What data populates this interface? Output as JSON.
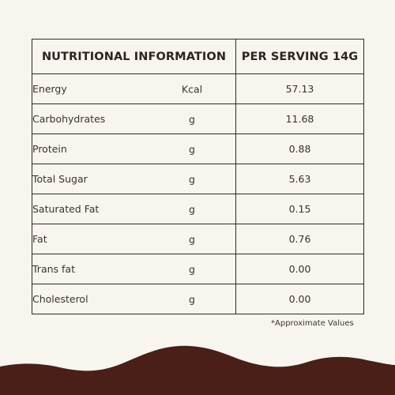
{
  "table": {
    "header": {
      "col1": "NUTRITIONAL INFORMATION",
      "col2": "PER SERVING 14G"
    },
    "rows": [
      {
        "name": "Energy",
        "unit": "Kcal",
        "value": "57.13"
      },
      {
        "name": "Carbohydrates",
        "unit": "g",
        "value": "11.68"
      },
      {
        "name": "Protein",
        "unit": "g",
        "value": "0.88"
      },
      {
        "name": "Total Sugar",
        "unit": "g",
        "value": "5.63"
      },
      {
        "name": "Saturated Fat",
        "unit": "g",
        "value": "0.15"
      },
      {
        "name": "Fat",
        "unit": "g",
        "value": "0.76"
      },
      {
        "name": "Trans fat",
        "unit": "g",
        "value": "0.00"
      },
      {
        "name": "Cholesterol",
        "unit": "g",
        "value": "0.00"
      }
    ]
  },
  "footnote": "*Approximate Values",
  "colors": {
    "background": "#f8f5ee",
    "wave": "#4a1f17",
    "text": "#3a332e",
    "border": "#2f2a26"
  }
}
